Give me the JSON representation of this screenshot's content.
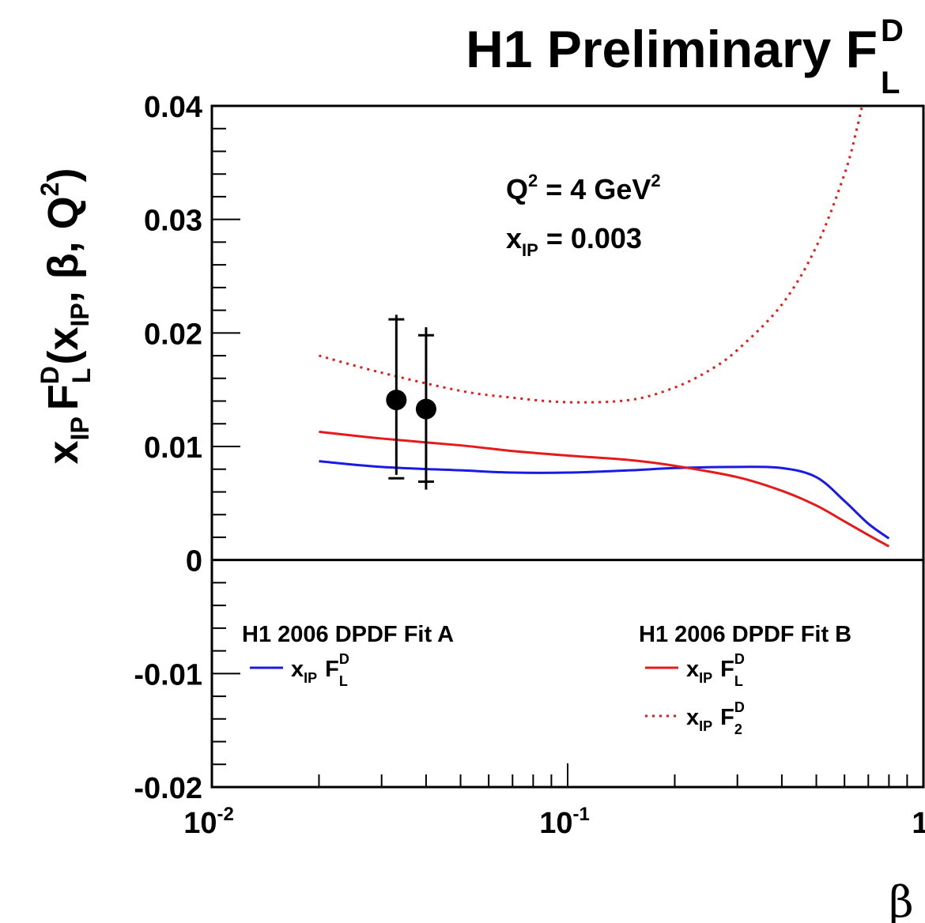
{
  "chart_data": {
    "type": "line",
    "title": {
      "main": "H1 Preliminary F",
      "sup": "D",
      "sub": "L"
    },
    "ylabel": {
      "pre": "x",
      "pre_sub": "IP",
      "f": "F",
      "f_sup": "D",
      "f_sub": "L",
      "open": "(x",
      "arg_sub": "IP",
      "tail": ", β, Q",
      "tail_sup": "2",
      "close": ")"
    },
    "xlabel": "β",
    "xscale": "log",
    "xlim": [
      0.01,
      1
    ],
    "ylim": [
      -0.02,
      0.04
    ],
    "x_ticks": [
      {
        "base": "10",
        "exp": "-2",
        "value": 0.01
      },
      {
        "base": "10",
        "exp": "-1",
        "value": 0.1
      },
      {
        "base": "1",
        "exp": "",
        "value": 1
      }
    ],
    "y_ticks": [
      {
        "label": "-0.02",
        "value": -0.02
      },
      {
        "label": "-0.01",
        "value": -0.01
      },
      {
        "label": "0",
        "value": 0
      },
      {
        "label": "0.01",
        "value": 0.01
      },
      {
        "label": "0.02",
        "value": 0.02
      },
      {
        "label": "0.03",
        "value": 0.03
      },
      {
        "label": "0.04",
        "value": 0.04
      }
    ],
    "annotations": {
      "q2": {
        "pre": "Q",
        "sup1": "2",
        "mid": " = 4 GeV",
        "sup2": "2"
      },
      "xip": {
        "pre": "x",
        "sub": "IP",
        "post": " = 0.003"
      }
    },
    "legend": {
      "left_title": "H1 2006 DPDF Fit A",
      "right_title": "H1 2006 DPDF Fit B",
      "entries": [
        {
          "series": 0,
          "x": "x",
          "xsub": "IP",
          "f": "F",
          "fsup": "D",
          "fsub": "L"
        },
        {
          "series": 1,
          "x": "x",
          "xsub": "IP",
          "f": "F",
          "fsup": "D",
          "fsub": "L"
        },
        {
          "series": 2,
          "x": "x",
          "xsub": "IP",
          "f": "F",
          "fsup": "D",
          "fsub": "2"
        }
      ]
    },
    "series": [
      {
        "color": "#1a1ae6",
        "dash": "solid",
        "points": [
          [
            0.02,
            0.0087
          ],
          [
            0.03,
            0.0082
          ],
          [
            0.05,
            0.0079
          ],
          [
            0.07,
            0.0077
          ],
          [
            0.1,
            0.0077
          ],
          [
            0.15,
            0.0079
          ],
          [
            0.2,
            0.0081
          ],
          [
            0.3,
            0.0082
          ],
          [
            0.4,
            0.0081
          ],
          [
            0.5,
            0.0073
          ],
          [
            0.6,
            0.0052
          ],
          [
            0.7,
            0.0032
          ],
          [
            0.8,
            0.0019
          ]
        ]
      },
      {
        "color": "#e61a1a",
        "dash": "solid",
        "points": [
          [
            0.02,
            0.0113
          ],
          [
            0.03,
            0.0107
          ],
          [
            0.05,
            0.0101
          ],
          [
            0.07,
            0.0096
          ],
          [
            0.1,
            0.0092
          ],
          [
            0.15,
            0.0088
          ],
          [
            0.2,
            0.0083
          ],
          [
            0.3,
            0.0073
          ],
          [
            0.4,
            0.0061
          ],
          [
            0.5,
            0.0048
          ],
          [
            0.6,
            0.0034
          ],
          [
            0.7,
            0.0022
          ],
          [
            0.8,
            0.0012
          ]
        ]
      },
      {
        "color": "#e61a1a",
        "dash": "dotted",
        "points": [
          [
            0.02,
            0.018
          ],
          [
            0.03,
            0.0165
          ],
          [
            0.05,
            0.0149
          ],
          [
            0.07,
            0.0143
          ],
          [
            0.1,
            0.0139
          ],
          [
            0.15,
            0.0141
          ],
          [
            0.2,
            0.0152
          ],
          [
            0.25,
            0.0167
          ],
          [
            0.3,
            0.0185
          ],
          [
            0.4,
            0.0225
          ],
          [
            0.5,
            0.0276
          ],
          [
            0.6,
            0.034
          ],
          [
            0.65,
            0.038
          ],
          [
            0.7,
            0.0425
          ]
        ]
      }
    ],
    "data_points": [
      {
        "x": 0.033,
        "y": 0.0141,
        "yerr_low": 0.0075,
        "yerr_high": 0.0216,
        "stat_low": 0.0072,
        "stat_high": 0.0212
      },
      {
        "x": 0.04,
        "y": 0.0133,
        "yerr_low": 0.0062,
        "yerr_high": 0.0205,
        "stat_low": 0.0069,
        "stat_high": 0.0198
      }
    ]
  }
}
